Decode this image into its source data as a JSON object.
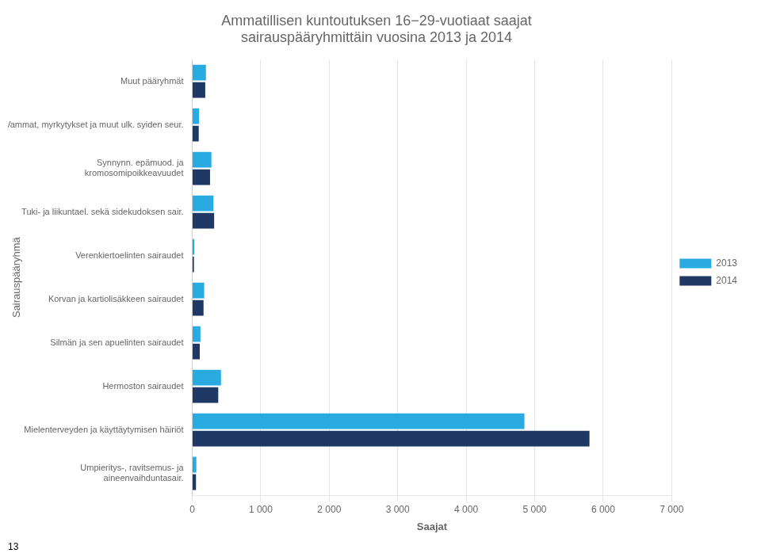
{
  "chart_data": {
    "type": "bar",
    "orientation": "horizontal",
    "title": "Ammatillisen kuntoutuksen 16−29-vuotiaat saajat\nsairauspääryhmittäin vuosina 2013 ja 2014",
    "categories": [
      "Muut pääryhmät",
      "Vammat, myrkytykset ja muut ulk. syiden seur.",
      "Synnynn. epämuod. ja\nkromosomipoikkeavuudet",
      "Tuki- ja liikuntael. sekä sidekudoksen sair.",
      "Verenkiertoelinten sairaudet",
      "Korvan ja kartiolisäkkeen sairaudet",
      "Silmän ja sen apuelinten sairaudet",
      "Hermoston sairaudet",
      "Mielenterveyden ja käyttäytymisen häiriöt",
      "Umpieritys-, ravitsemus- ja\naineenvaihduntasair."
    ],
    "series": [
      {
        "name": "2013",
        "color": "#29ABE2",
        "values": [
          200,
          100,
          280,
          310,
          30,
          175,
          120,
          420,
          4850,
          60
        ]
      },
      {
        "name": "2014",
        "color": "#1F3864",
        "values": [
          190,
          95,
          260,
          320,
          25,
          165,
          110,
          380,
          5800,
          55
        ]
      }
    ],
    "xlabel": "Saajat",
    "ylabel": "Sairauspääryhmä",
    "xlim": [
      0,
      7000
    ],
    "xticks": [
      0,
      {
        "value": 1000,
        "label": "1 000"
      },
      {
        "value": 2000,
        "label": "2 000"
      },
      {
        "value": 3000,
        "label": "3 000"
      },
      {
        "value": 4000,
        "label": "4 000"
      },
      {
        "value": 5000,
        "label": "5 000"
      },
      {
        "value": 6000,
        "label": "6 000"
      },
      {
        "value": 7000,
        "label": "7 000"
      }
    ],
    "grid": true,
    "legend": "right",
    "annotations": [
      "13"
    ]
  }
}
